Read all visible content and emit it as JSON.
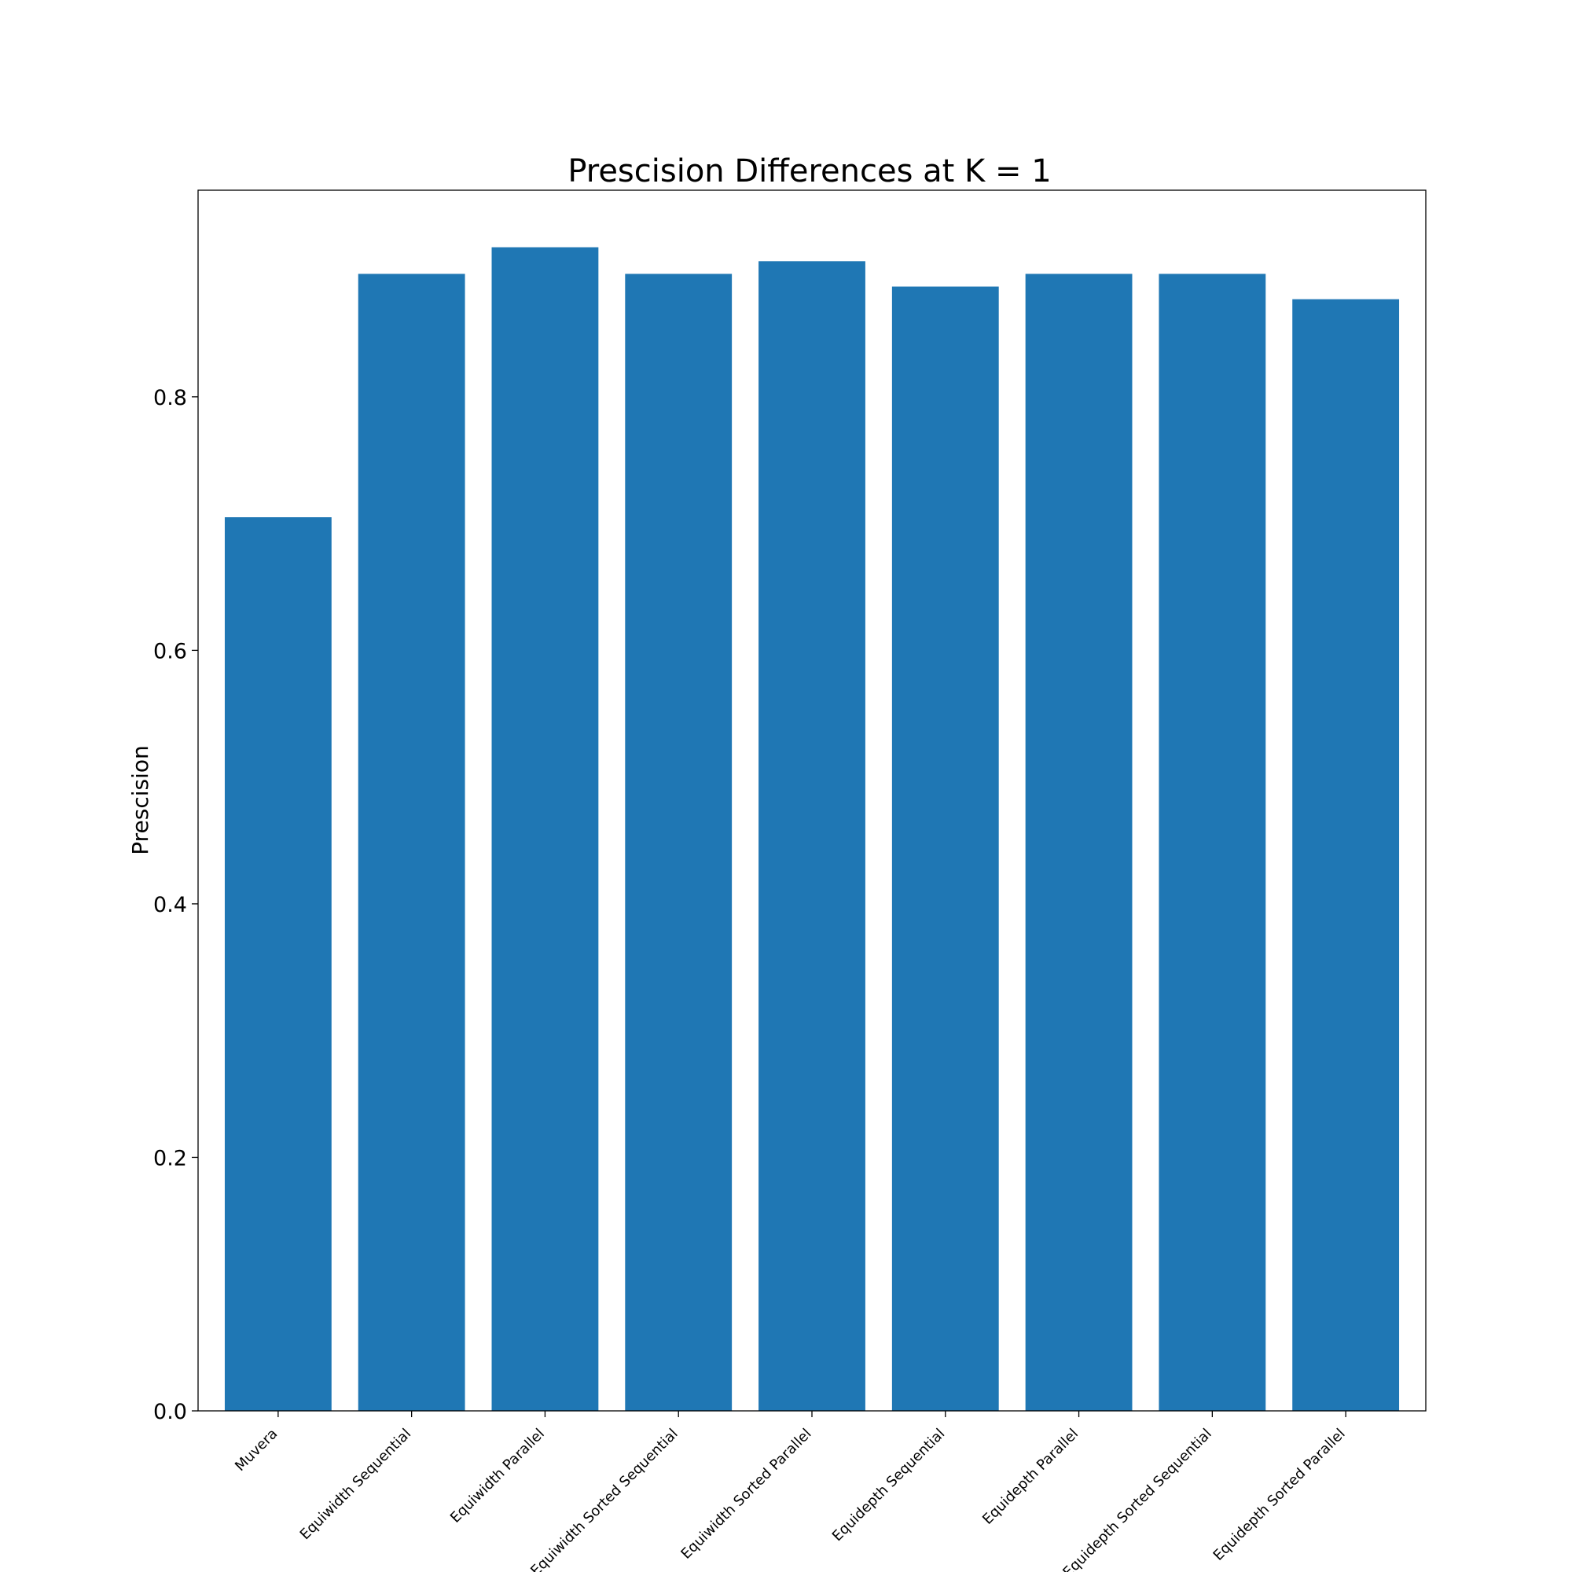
{
  "chart_data": {
    "type": "bar",
    "title": "Prescision Differences at K = 1",
    "xlabel": "",
    "ylabel": "Prescision",
    "categories": [
      "Muvera",
      "Equiwidth Sequential",
      "Equiwidth Parallel",
      "Equiwidth Sorted Sequential",
      "Equiwidth Sorted Parallel",
      "Equidepth Sequential",
      "Equidepth Parallel",
      "Equidepth Sorted Sequential",
      "Equidepth Sorted Parallel"
    ],
    "values": [
      0.705,
      0.897,
      0.918,
      0.897,
      0.907,
      0.887,
      0.897,
      0.897,
      0.877
    ],
    "ylim": [
      0,
      0.963
    ],
    "yticks": [
      0.0,
      0.2,
      0.4,
      0.6,
      0.8
    ],
    "ytick_labels": [
      "0.0",
      "0.2",
      "0.4",
      "0.6",
      "0.8"
    ],
    "grid": false,
    "legend": "none",
    "bar_color": "#1f77b4"
  }
}
